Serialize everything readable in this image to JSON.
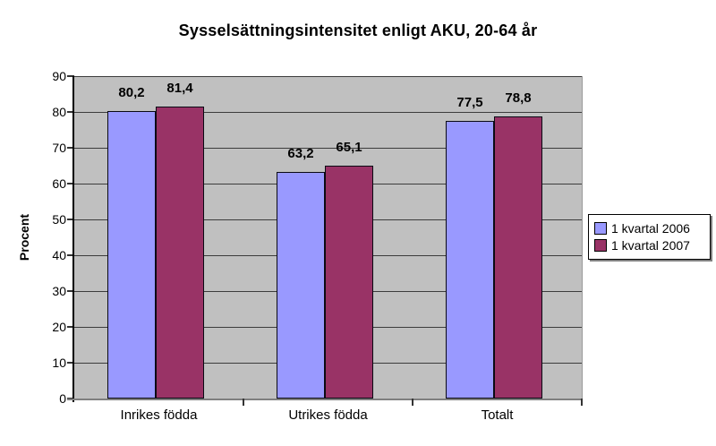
{
  "chart_data": {
    "type": "bar",
    "title": "Sysselsättningsintensitet enligt AKU, 20-64 år",
    "ylabel": "Procent",
    "xlabel": "",
    "categories": [
      "Inrikes födda",
      "Utrikes födda",
      "Totalt"
    ],
    "series": [
      {
        "name": "1 kvartal 2006",
        "color": "#9999FF",
        "values": [
          80.2,
          63.2,
          77.5
        ],
        "labels": [
          "80,2",
          "63,2",
          "77,5"
        ]
      },
      {
        "name": "1 kvartal 2007",
        "color": "#993366",
        "values": [
          81.4,
          65.1,
          78.8
        ],
        "labels": [
          "81,4",
          "65,1",
          "78,8"
        ]
      }
    ],
    "ylim": [
      0,
      90
    ],
    "yticks": [
      0,
      10,
      20,
      30,
      40,
      50,
      60,
      70,
      80,
      90
    ],
    "grid": true,
    "legend_position": "right",
    "plot_background": "#C0C0C0",
    "gridline_color": "#3c3c3c"
  }
}
